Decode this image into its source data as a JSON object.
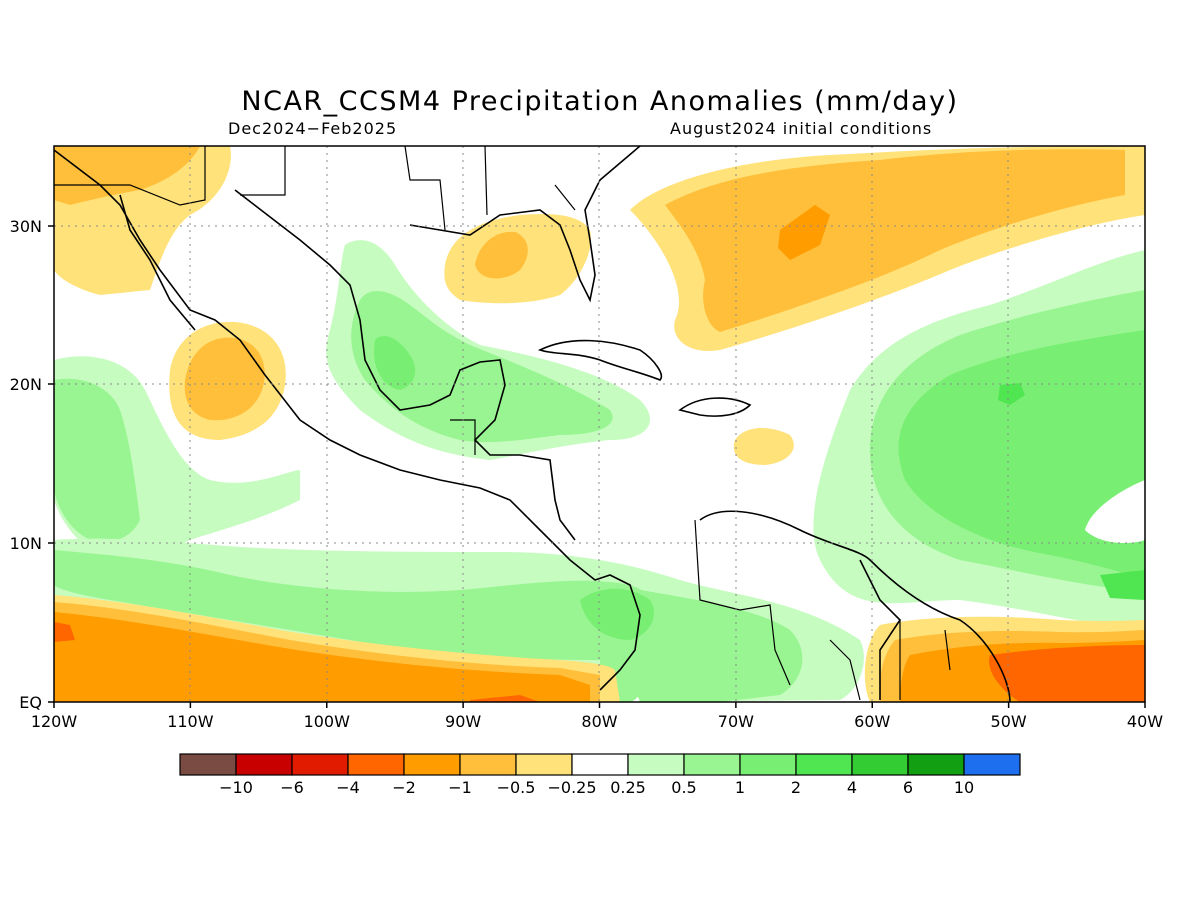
{
  "title": "NCAR_CCSM4 Precipitation Anomalies (mm/day)",
  "subtitle_left": "Dec2024−Feb2025",
  "subtitle_right": "August2024 initial conditions",
  "lat_labels": [
    "30N",
    "20N",
    "10N",
    "EQ"
  ],
  "lon_labels": [
    "120W",
    "110W",
    "100W",
    "90W",
    "80W",
    "70W",
    "60W",
    "50W",
    "40W"
  ],
  "colorbar": {
    "colors": [
      "#7a4b42",
      "#c80000",
      "#e01b00",
      "#ff6600",
      "#ff9c00",
      "#ffbf3a",
      "#ffe27a",
      "#ffffff",
      "#c6fcc0",
      "#98f591",
      "#78ef72",
      "#4fe651",
      "#33cc33",
      "#12a012",
      "#1e6ff0"
    ],
    "labels": [
      "−10",
      "−6",
      "−4",
      "−2",
      "−1",
      "−0.5",
      "−0.25",
      "0.25",
      "0.5",
      "1",
      "2",
      "4",
      "6",
      "10"
    ]
  }
}
